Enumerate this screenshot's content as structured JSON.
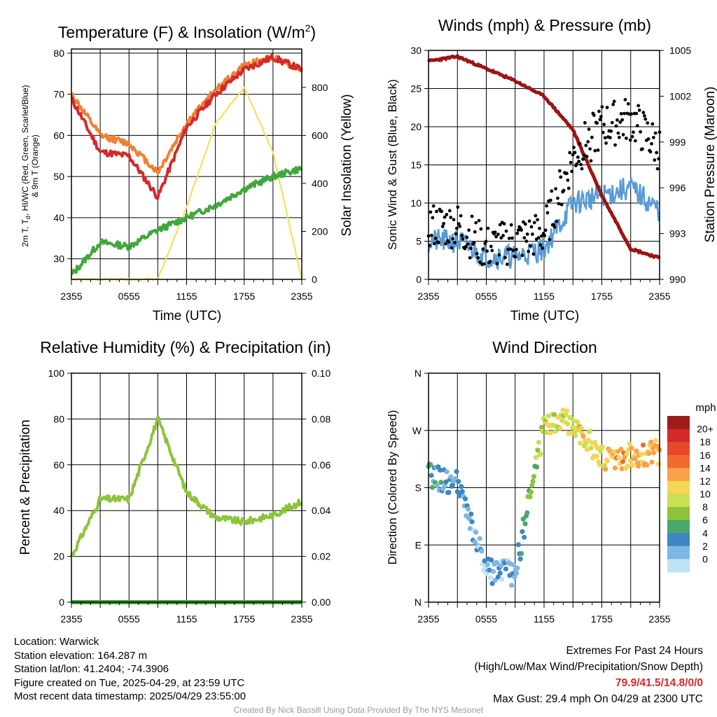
{
  "colors": {
    "temp_2m": "#d42a2a",
    "temp_9m": "#ef8034",
    "dewpoint": "#3fa83a",
    "windchill": "#4a90d0",
    "solar": "#f5e05a",
    "wind_speed": "#5a9bd5",
    "gust": "#000000",
    "pressure": "#9a1515",
    "rh": "#8cc43c",
    "precip": "#3fa83a",
    "extremes": "#d42a2a"
  },
  "charts": {
    "temp": {
      "title_main": "Temperature (F) & Insolation (W/m",
      "title_sup": "2",
      "title_end": ")",
      "xlabel": "Time (UTC)",
      "ylabel_left_1": "2m T, T",
      "ylabel_left_sub": "d",
      "ylabel_left_2": ", HI/WC (Red, Green, Scarlet/Blue)",
      "ylabel_left_3": "& 9m T (Orange)",
      "ylabel_right": "Solar Insolation (Yellow)",
      "xticks": [
        "2355",
        "0555",
        "1155",
        "1755",
        "2355"
      ],
      "yticks_left": [
        "30",
        "40",
        "50",
        "60",
        "70",
        "80"
      ],
      "yticks_right": [
        "0",
        "200",
        "400",
        "600",
        "800"
      ]
    },
    "wind": {
      "title": "Winds (mph) & Pressure (mb)",
      "xlabel": "Time (UTC)",
      "ylabel_left": "Sonic Wind & Gust (Blue, Black)",
      "ylabel_right": "Station Pressure (Maroon)",
      "xticks": [
        "2355",
        "0555",
        "1155",
        "1755",
        "2355"
      ],
      "yticks_left": [
        "0",
        "5",
        "10",
        "15",
        "20",
        "25",
        "30"
      ],
      "yticks_right": [
        "990",
        "993",
        "996",
        "999",
        "1002",
        "1005"
      ]
    },
    "rh": {
      "title": "Relative Humidity (%) & Precipitation (in)",
      "ylabel_left": "Percent & Precipitation",
      "xticks": [
        "2355",
        "0555",
        "1155",
        "1755",
        "2355"
      ],
      "yticks_left": [
        "0",
        "20",
        "40",
        "60",
        "80",
        "100"
      ],
      "yticks_right": [
        "0.00",
        "0.02",
        "0.04",
        "0.06",
        "0.08",
        "0.10"
      ]
    },
    "dir": {
      "title": "Wind Direction",
      "ylabel_left": "Direction (Colored By Speed)",
      "xticks": [
        "2355",
        "0555",
        "1155",
        "1755",
        "2355"
      ],
      "yticks_left": [
        "N",
        "E",
        "S",
        "W",
        "N"
      ],
      "legend_title": "mph",
      "legend_labels": [
        "20+",
        "18",
        "16",
        "14",
        "12",
        "10",
        "8",
        "6",
        "4",
        "2",
        "0"
      ],
      "legend_colors": [
        "#a01c1c",
        "#d42a2a",
        "#e8482c",
        "#f26a30",
        "#f7a24a",
        "#f6d454",
        "#c8e052",
        "#8cc43c",
        "#4aa86a",
        "#3f86c4",
        "#7fb7e2",
        "#c0e2f6"
      ]
    }
  },
  "chart_data": [
    {
      "type": "line",
      "title": "Temperature (F) & Insolation (W/m2)",
      "xlabel": "Time (UTC)",
      "x": [
        "2355",
        "0255",
        "0555",
        "0855",
        "1155",
        "1455",
        "1755",
        "2055",
        "2355"
      ],
      "ylim": [
        25,
        81
      ],
      "y2lim": [
        0,
        960
      ],
      "series": [
        {
          "name": "2m T",
          "axis": "left",
          "values": [
            69,
            56,
            55,
            45,
            62,
            70,
            76,
            79,
            76
          ]
        },
        {
          "name": "9m T",
          "axis": "left",
          "values": [
            70,
            60,
            58,
            51,
            63,
            71,
            77,
            79,
            76
          ]
        },
        {
          "name": "Td",
          "axis": "left",
          "values": [
            26,
            34,
            33,
            37,
            40,
            43,
            47,
            50,
            52
          ]
        },
        {
          "name": "Solar Insolation",
          "axis": "right",
          "values": [
            0,
            0,
            0,
            0,
            300,
            650,
            800,
            530,
            0
          ]
        }
      ]
    },
    {
      "type": "line",
      "title": "Winds (mph) & Pressure (mb)",
      "xlabel": "Time (UTC)",
      "x": [
        "2355",
        "0255",
        "0555",
        "0855",
        "1155",
        "1455",
        "1755",
        "2055",
        "2355"
      ],
      "ylim": [
        0,
        30
      ],
      "y2lim": [
        990,
        1005
      ],
      "series": [
        {
          "name": "Sonic Wind",
          "axis": "left",
          "values": [
            5,
            5,
            3,
            3,
            4,
            10,
            11,
            12,
            9
          ]
        },
        {
          "name": "Gust",
          "axis": "left",
          "values": [
            7,
            7,
            4,
            5,
            6,
            16,
            20,
            21,
            17
          ]
        },
        {
          "name": "Station Pressure",
          "axis": "right",
          "values": [
            1004.3,
            1004.6,
            1003.8,
            1003.0,
            1002.0,
            999.8,
            995.5,
            992.0,
            991.4
          ]
        }
      ]
    },
    {
      "type": "line",
      "title": "Relative Humidity (%) & Precipitation (in)",
      "x": [
        "2355",
        "0255",
        "0555",
        "0855",
        "1155",
        "1455",
        "1755",
        "2055",
        "2355"
      ],
      "ylim": [
        0,
        100
      ],
      "y2lim": [
        0,
        0.1
      ],
      "series": [
        {
          "name": "Relative Humidity",
          "axis": "left",
          "values": [
            20,
            45,
            45,
            80,
            48,
            37,
            35,
            38,
            44
          ]
        },
        {
          "name": "Precipitation",
          "axis": "right",
          "values": [
            0,
            0,
            0,
            0,
            0,
            0,
            0,
            0,
            0
          ]
        }
      ]
    },
    {
      "type": "scatter",
      "title": "Wind Direction",
      "x": [
        "2355",
        "0255",
        "0555",
        "0855",
        "1155",
        "1455",
        "1755",
        "2055",
        "2355"
      ],
      "ylim": [
        0,
        360
      ],
      "series": [
        {
          "name": "Direction",
          "values": [
            200,
            185,
            50,
            45,
            280,
            285,
            225,
            230,
            235
          ]
        },
        {
          "name": "Speed",
          "values": [
            4,
            3,
            2,
            3,
            10,
            11,
            12,
            14,
            13
          ]
        }
      ]
    }
  ],
  "info": {
    "location": "Location: Warwick",
    "elevation": "Station elevation: 164.287 m",
    "latlon": "Station lat/lon: 41.2404; -74.3906",
    "created": "Figure created on Tue, 2025-04-29, at 23:59 UTC",
    "recent": "Most recent data timestamp: 2025/04/29 23:55:00",
    "extremes_title": "Extremes For Past 24 Hours",
    "extremes_sub": "(High/Low/Max Wind/Precipitation/Snow Depth)",
    "extremes_values": "79.9/41.5/14.8/0/0",
    "max_gust": "Max Gust: 29.4 mph On 04/29 at 2300 UTC",
    "credit": "Created By Nick Bassill Using Data Provided By The NYS Mesonet"
  }
}
